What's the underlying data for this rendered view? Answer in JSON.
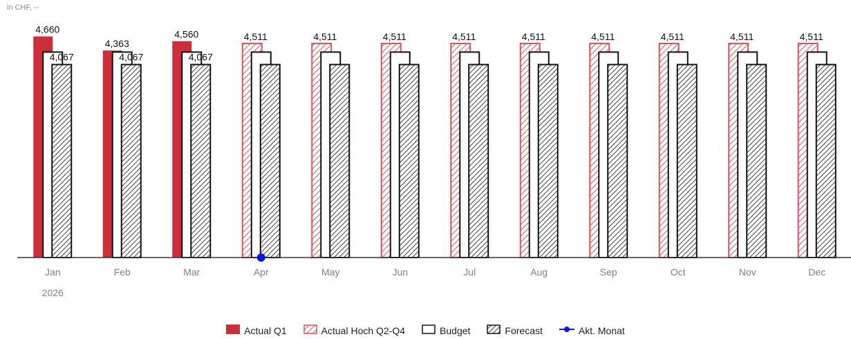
{
  "unit_label": "in CHF, --",
  "chart_data": {
    "type": "bar",
    "categories": [
      "Jan",
      "Feb",
      "Mar",
      "Apr",
      "May",
      "Jun",
      "Jul",
      "Aug",
      "Sep",
      "Oct",
      "Nov",
      "Dec"
    ],
    "year_label": "2026",
    "series": [
      {
        "name": "Actual Q1",
        "values": [
          4660,
          4363,
          4560,
          null,
          null,
          null,
          null,
          null,
          null,
          null,
          null,
          null
        ]
      },
      {
        "name": "Actual Hoch Q2-Q4",
        "values": [
          null,
          null,
          null,
          4511,
          4511,
          4511,
          4511,
          4511,
          4511,
          4511,
          4511,
          4511
        ]
      },
      {
        "name": "Budget",
        "values": [
          4330,
          4330,
          4330,
          4330,
          4330,
          4330,
          4330,
          4330,
          4330,
          4330,
          4330,
          4330
        ]
      },
      {
        "name": "Forecast",
        "values": [
          4067,
          4067,
          4067,
          4067,
          4067,
          4067,
          4067,
          4067,
          4067,
          4067,
          4067,
          4067
        ]
      }
    ],
    "data_labels": {
      "primary": [
        "4,660",
        "4,363",
        "4,560",
        "4,511",
        "4,511",
        "4,511",
        "4,511",
        "4,511",
        "4,511",
        "4,511",
        "4,511",
        "4,511"
      ],
      "forecast": [
        "4,067",
        "4,067",
        "4,067",
        "",
        "",
        "",
        "",
        "",
        "",
        "",
        "",
        ""
      ]
    },
    "marker": {
      "name": "Akt. Monat",
      "category": "Apr",
      "value": 0
    },
    "ylim": [
      0,
      4700
    ],
    "grid": false,
    "legend_position": "bottom",
    "colors": {
      "actual_q1": "#cc2f3a",
      "actual_hoch": "#e0505a",
      "budget": "#111111",
      "forecast": "#111111",
      "marker": "#0a14e6",
      "axis": "#333333"
    }
  },
  "legend": [
    {
      "key": "actual_q1",
      "label": "Actual Q1"
    },
    {
      "key": "actual_hoch",
      "label": "Actual Hoch Q2-Q4"
    },
    {
      "key": "budget",
      "label": "Budget"
    },
    {
      "key": "forecast",
      "label": "Forecast"
    },
    {
      "key": "marker",
      "label": "Akt. Monat"
    }
  ]
}
